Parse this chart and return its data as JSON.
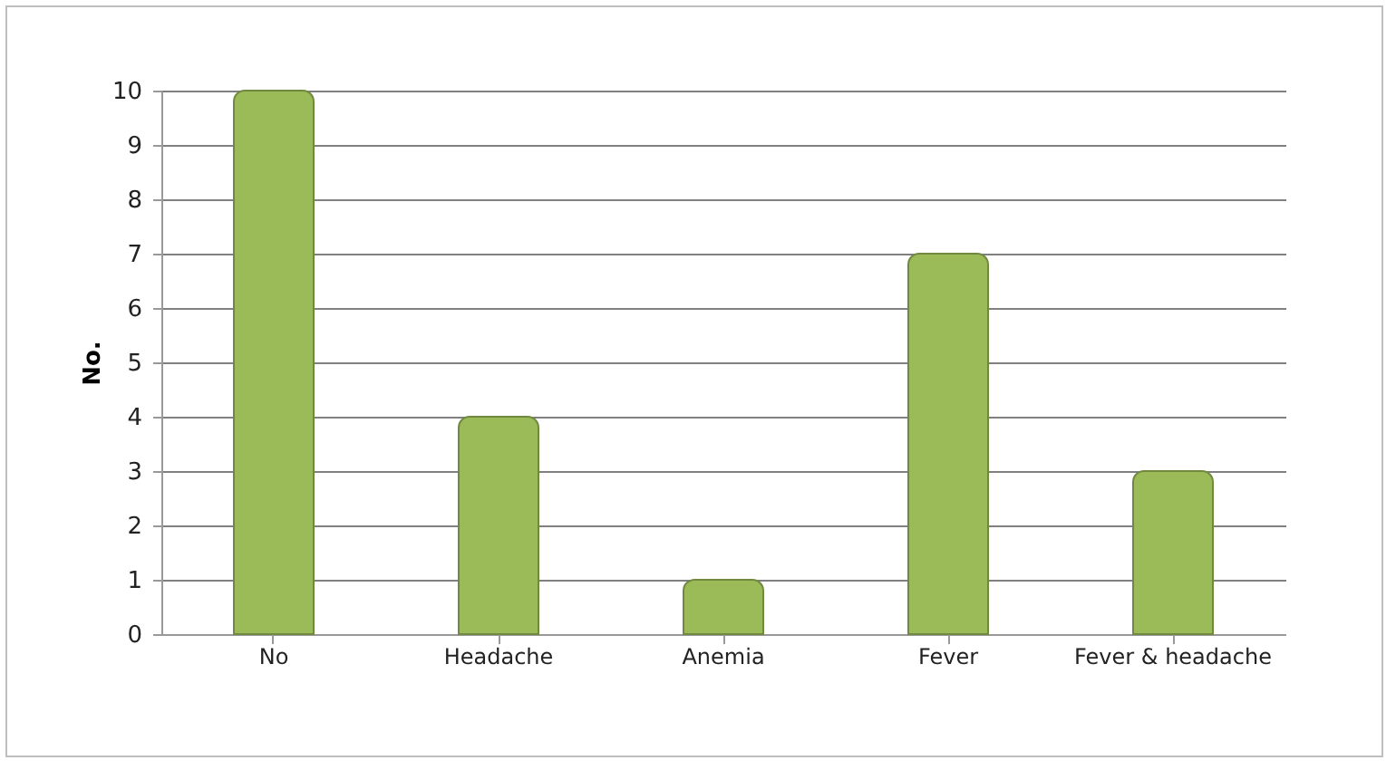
{
  "chart_data": {
    "type": "bar",
    "ylabel": "No.",
    "categories": [
      "No",
      "Headache",
      "Anemia",
      "Fever",
      "Fever & headache"
    ],
    "values": [
      10,
      4,
      1,
      7,
      3
    ],
    "color": "#9bbb59",
    "ylim": [
      0,
      10
    ],
    "yticks": [
      0,
      1,
      2,
      3,
      4,
      5,
      6,
      7,
      8,
      9,
      10
    ],
    "grid": "y"
  }
}
